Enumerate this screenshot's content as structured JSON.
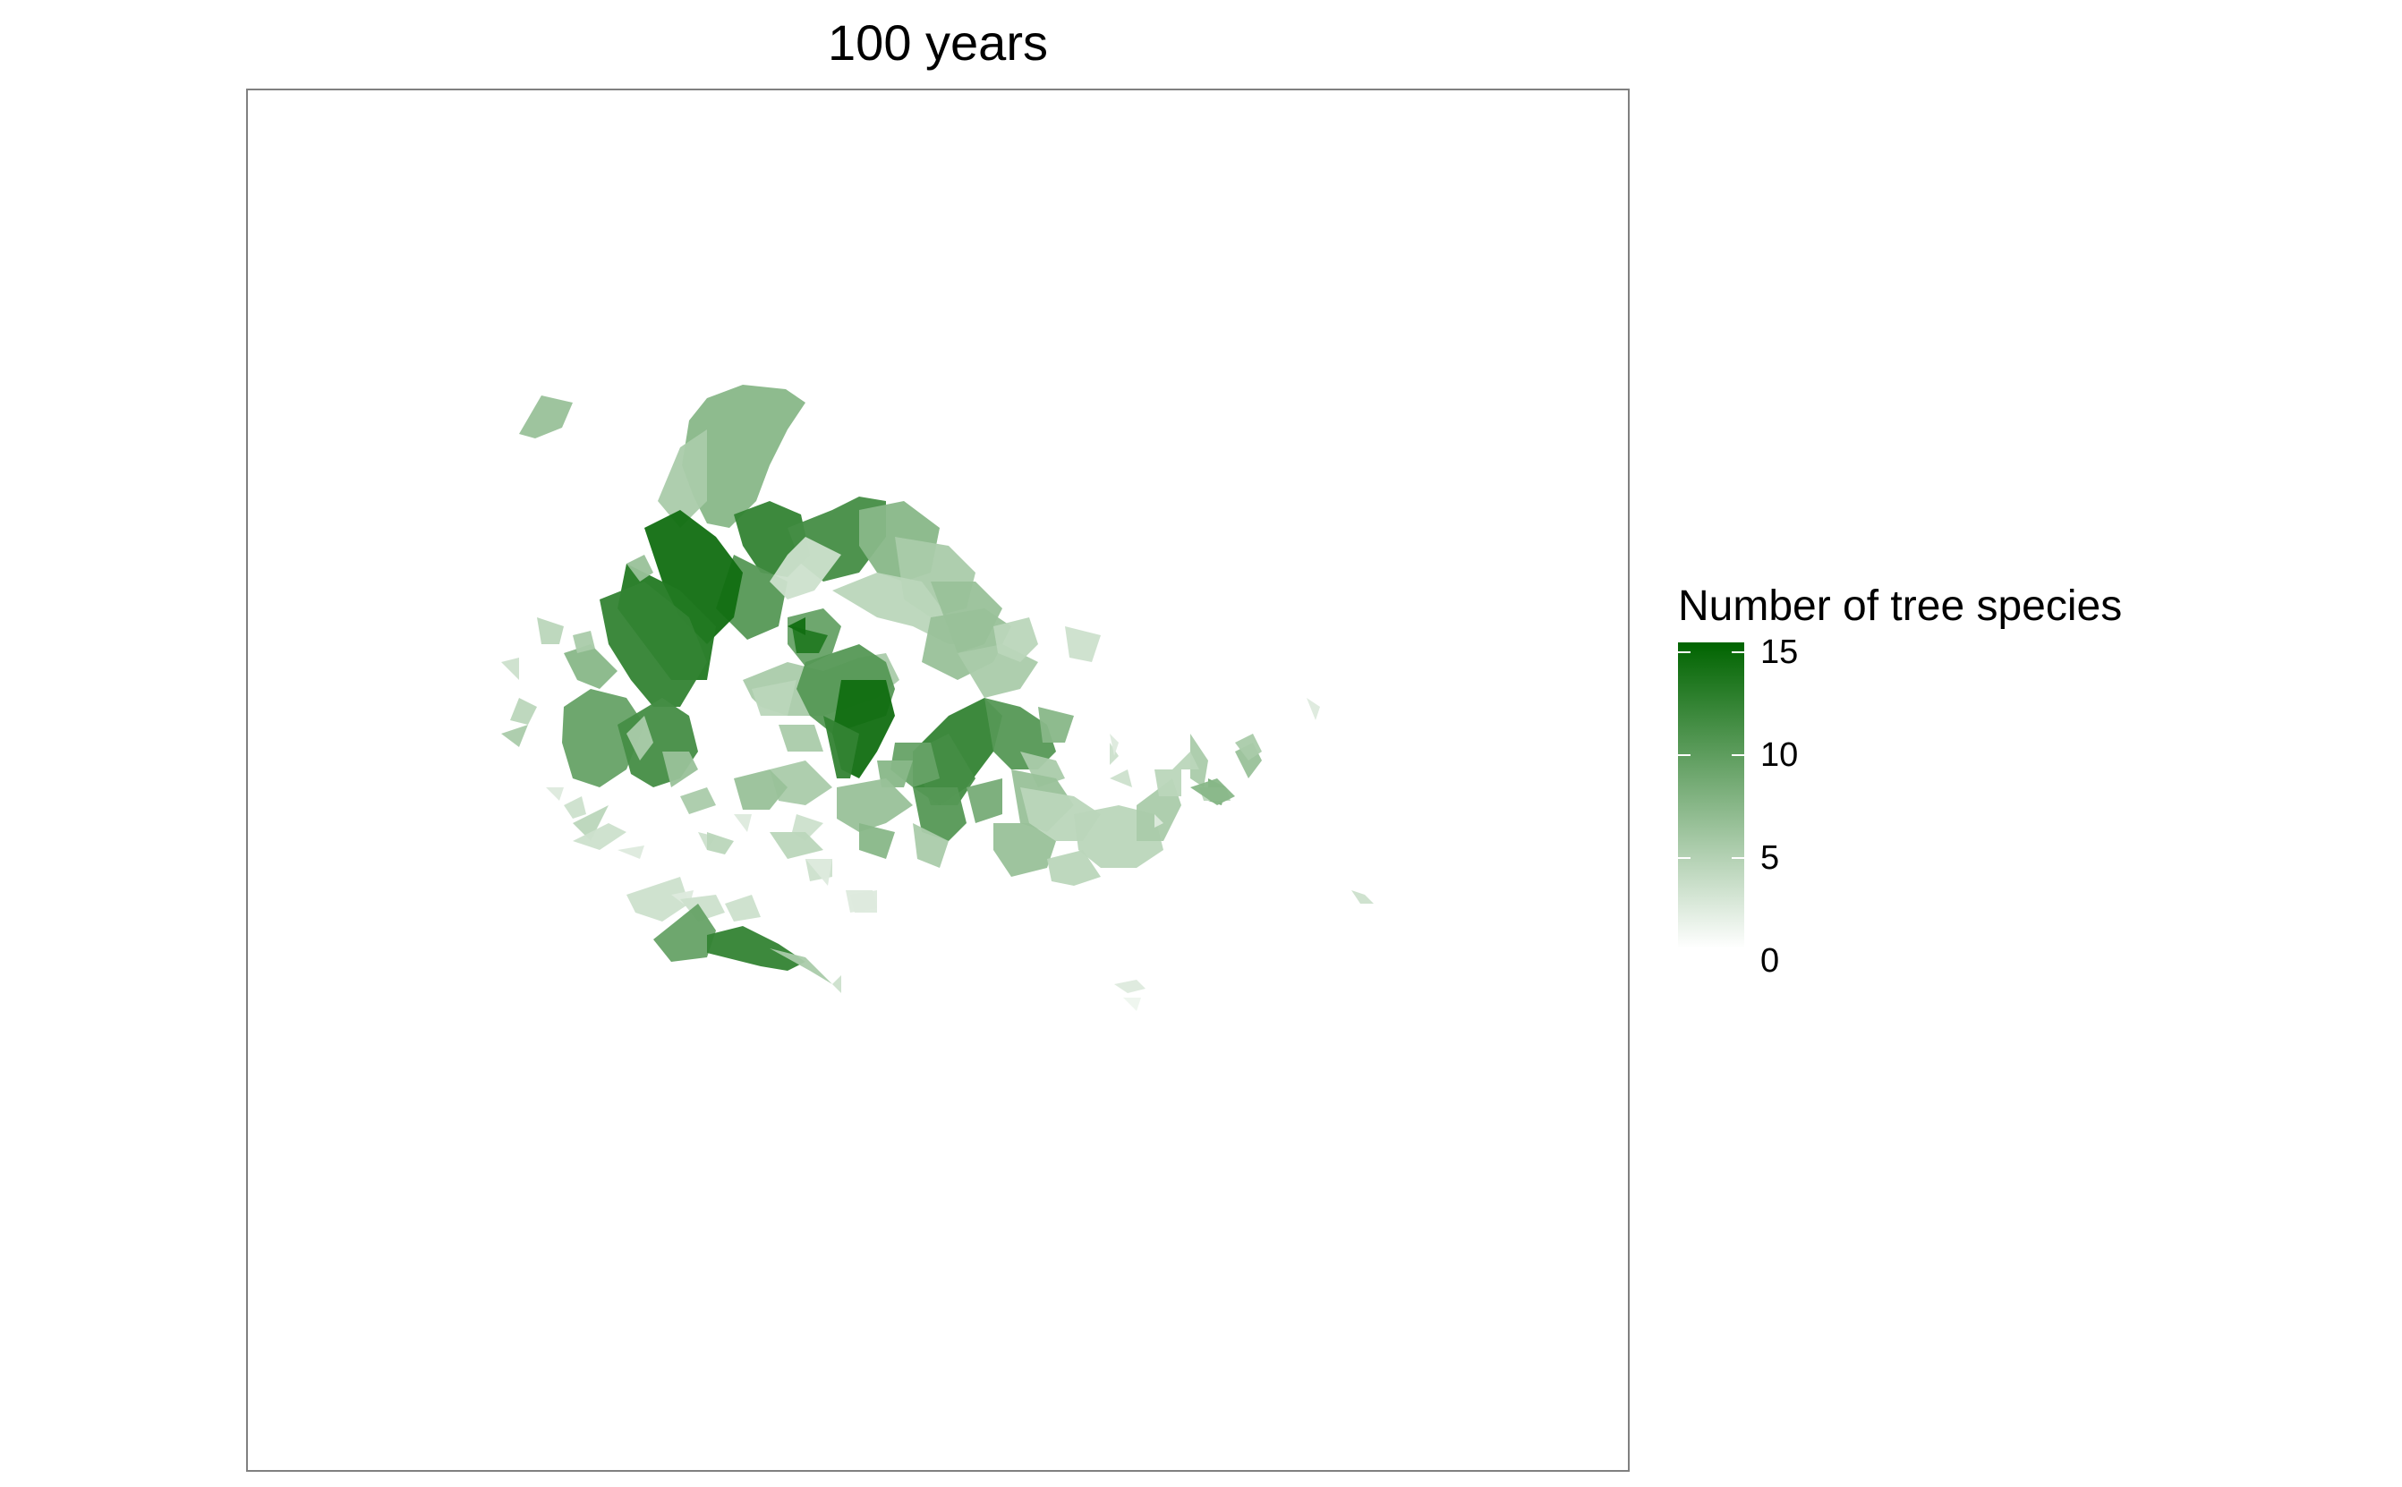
{
  "title": "100 years",
  "legend": {
    "title": "Number of tree species",
    "breaks": [
      "15",
      "10",
      "5",
      "0"
    ],
    "limits": [
      0,
      15
    ],
    "colors": {
      "low": "#ffffff",
      "high": "#006400"
    }
  },
  "chart_data": {
    "type": "heatmap",
    "title": "100 years",
    "fill_variable": "Number of tree species",
    "fill_range": [
      0,
      15
    ],
    "grid": false,
    "legend_position": "right",
    "panel_border": "#808080"
  }
}
